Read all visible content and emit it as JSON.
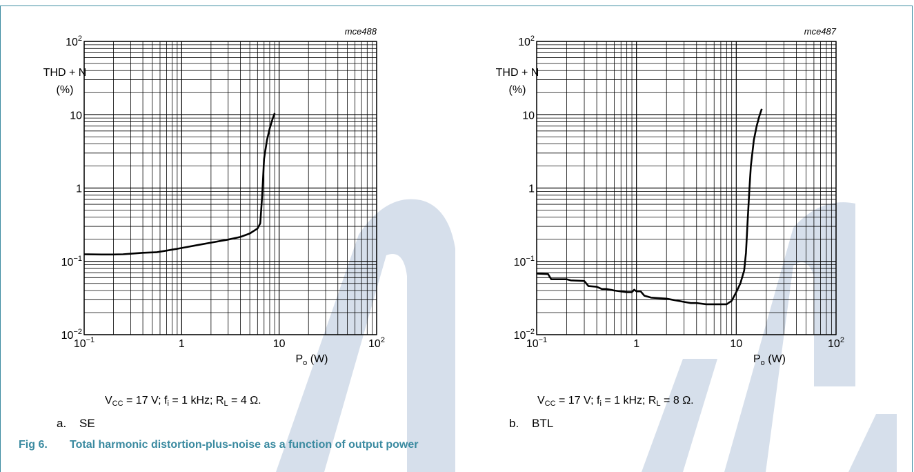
{
  "figure": {
    "number": "Fig 6.",
    "title": "Total harmonic distortion-plus-noise as a function of output power"
  },
  "chart_data": [
    {
      "type": "line",
      "code": "mce488",
      "ylabel_line1": "THD + N",
      "ylabel_line2": "(%)",
      "xlabel_main": "P",
      "xlabel_sub": "o",
      "xlabel_unit": "(W)",
      "xscale": "log",
      "yscale": "log",
      "xlim": [
        0.1,
        100
      ],
      "ylim": [
        0.01,
        100
      ],
      "x_ticks": [
        {
          "value": 0.1,
          "base": "10",
          "exp": "−1"
        },
        {
          "value": 1,
          "base": "1",
          "exp": ""
        },
        {
          "value": 10,
          "base": "10",
          "exp": ""
        },
        {
          "value": 100,
          "base": "10",
          "exp": "2"
        }
      ],
      "y_ticks": [
        {
          "value": 0.01,
          "base": "10",
          "exp": "−2"
        },
        {
          "value": 0.1,
          "base": "10",
          "exp": "−1"
        },
        {
          "value": 1,
          "base": "1",
          "exp": ""
        },
        {
          "value": 10,
          "base": "10",
          "exp": ""
        },
        {
          "value": 100,
          "base": "10",
          "exp": "2"
        }
      ],
      "grid": true,
      "series": [
        {
          "x": [
            0.1,
            0.15,
            0.2,
            0.25,
            0.3,
            0.4,
            0.55,
            0.7,
            1.0,
            1.5,
            2.0,
            3.0,
            4.0,
            5.0,
            6.0,
            6.4,
            6.7,
            7.0,
            7.5,
            8.0,
            8.5,
            9.0
          ],
          "y": [
            0.125,
            0.124,
            0.124,
            0.125,
            0.127,
            0.131,
            0.133,
            0.14,
            0.152,
            0.168,
            0.18,
            0.198,
            0.215,
            0.24,
            0.28,
            0.33,
            0.8,
            2.5,
            4.5,
            6.5,
            8.5,
            10.5
          ]
        }
      ],
      "condition": {
        "vcc_label": "V",
        "vcc_sub": "CC",
        "vcc_value": " = 17 V; f",
        "fi_sub": "i",
        "fi_value": " = 1 kHz; R",
        "rl_sub": "L",
        "rl_value": " = 4 Ω."
      },
      "sublabel": {
        "letter": "a.",
        "text": "SE"
      }
    },
    {
      "type": "line",
      "code": "mce487",
      "ylabel_line1": "THD + N",
      "ylabel_line2": "(%)",
      "xlabel_main": "P",
      "xlabel_sub": "o",
      "xlabel_unit": "(W)",
      "xscale": "log",
      "yscale": "log",
      "xlim": [
        0.1,
        100
      ],
      "ylim": [
        0.01,
        100
      ],
      "x_ticks": [
        {
          "value": 0.1,
          "base": "10",
          "exp": "−1"
        },
        {
          "value": 1,
          "base": "1",
          "exp": ""
        },
        {
          "value": 10,
          "base": "10",
          "exp": ""
        },
        {
          "value": 100,
          "base": "10",
          "exp": "2"
        }
      ],
      "y_ticks": [
        {
          "value": 0.01,
          "base": "10",
          "exp": "−2"
        },
        {
          "value": 0.1,
          "base": "10",
          "exp": "−1"
        },
        {
          "value": 1,
          "base": "1",
          "exp": ""
        },
        {
          "value": 10,
          "base": "10",
          "exp": ""
        },
        {
          "value": 100,
          "base": "10",
          "exp": "2"
        }
      ],
      "grid": true,
      "series": [
        {
          "x": [
            0.1,
            0.13,
            0.14,
            0.2,
            0.22,
            0.3,
            0.33,
            0.4,
            0.45,
            0.5,
            0.6,
            0.8,
            0.9,
            0.95,
            1.0,
            1.1,
            1.2,
            1.4,
            2.0,
            3.0,
            3.5,
            4.0,
            5.0,
            6.0,
            7.0,
            8.0,
            9.0,
            10.0,
            11.0,
            12.0,
            12.5,
            13.0,
            13.5,
            14.0,
            15.0,
            16.0,
            17.0,
            18.0
          ],
          "y": [
            0.068,
            0.067,
            0.057,
            0.057,
            0.055,
            0.054,
            0.046,
            0.045,
            0.042,
            0.042,
            0.04,
            0.038,
            0.038,
            0.041,
            0.039,
            0.039,
            0.034,
            0.032,
            0.031,
            0.028,
            0.027,
            0.027,
            0.026,
            0.026,
            0.026,
            0.026,
            0.029,
            0.038,
            0.05,
            0.075,
            0.13,
            0.35,
            0.9,
            2.0,
            4.5,
            7.0,
            9.5,
            12.0
          ]
        }
      ],
      "condition": {
        "vcc_label": "V",
        "vcc_sub": "CC",
        "vcc_value": " = 17 V; f",
        "fi_sub": "i",
        "fi_value": " = 1 kHz; R",
        "rl_sub": "L",
        "rl_value": " = 8 Ω."
      },
      "sublabel": {
        "letter": "b.",
        "text": "BTL"
      }
    }
  ],
  "colors": {
    "accent": "#3a8aa0",
    "watermark": "#c8d4e4",
    "curve": "#000000",
    "grid": "#000000"
  }
}
